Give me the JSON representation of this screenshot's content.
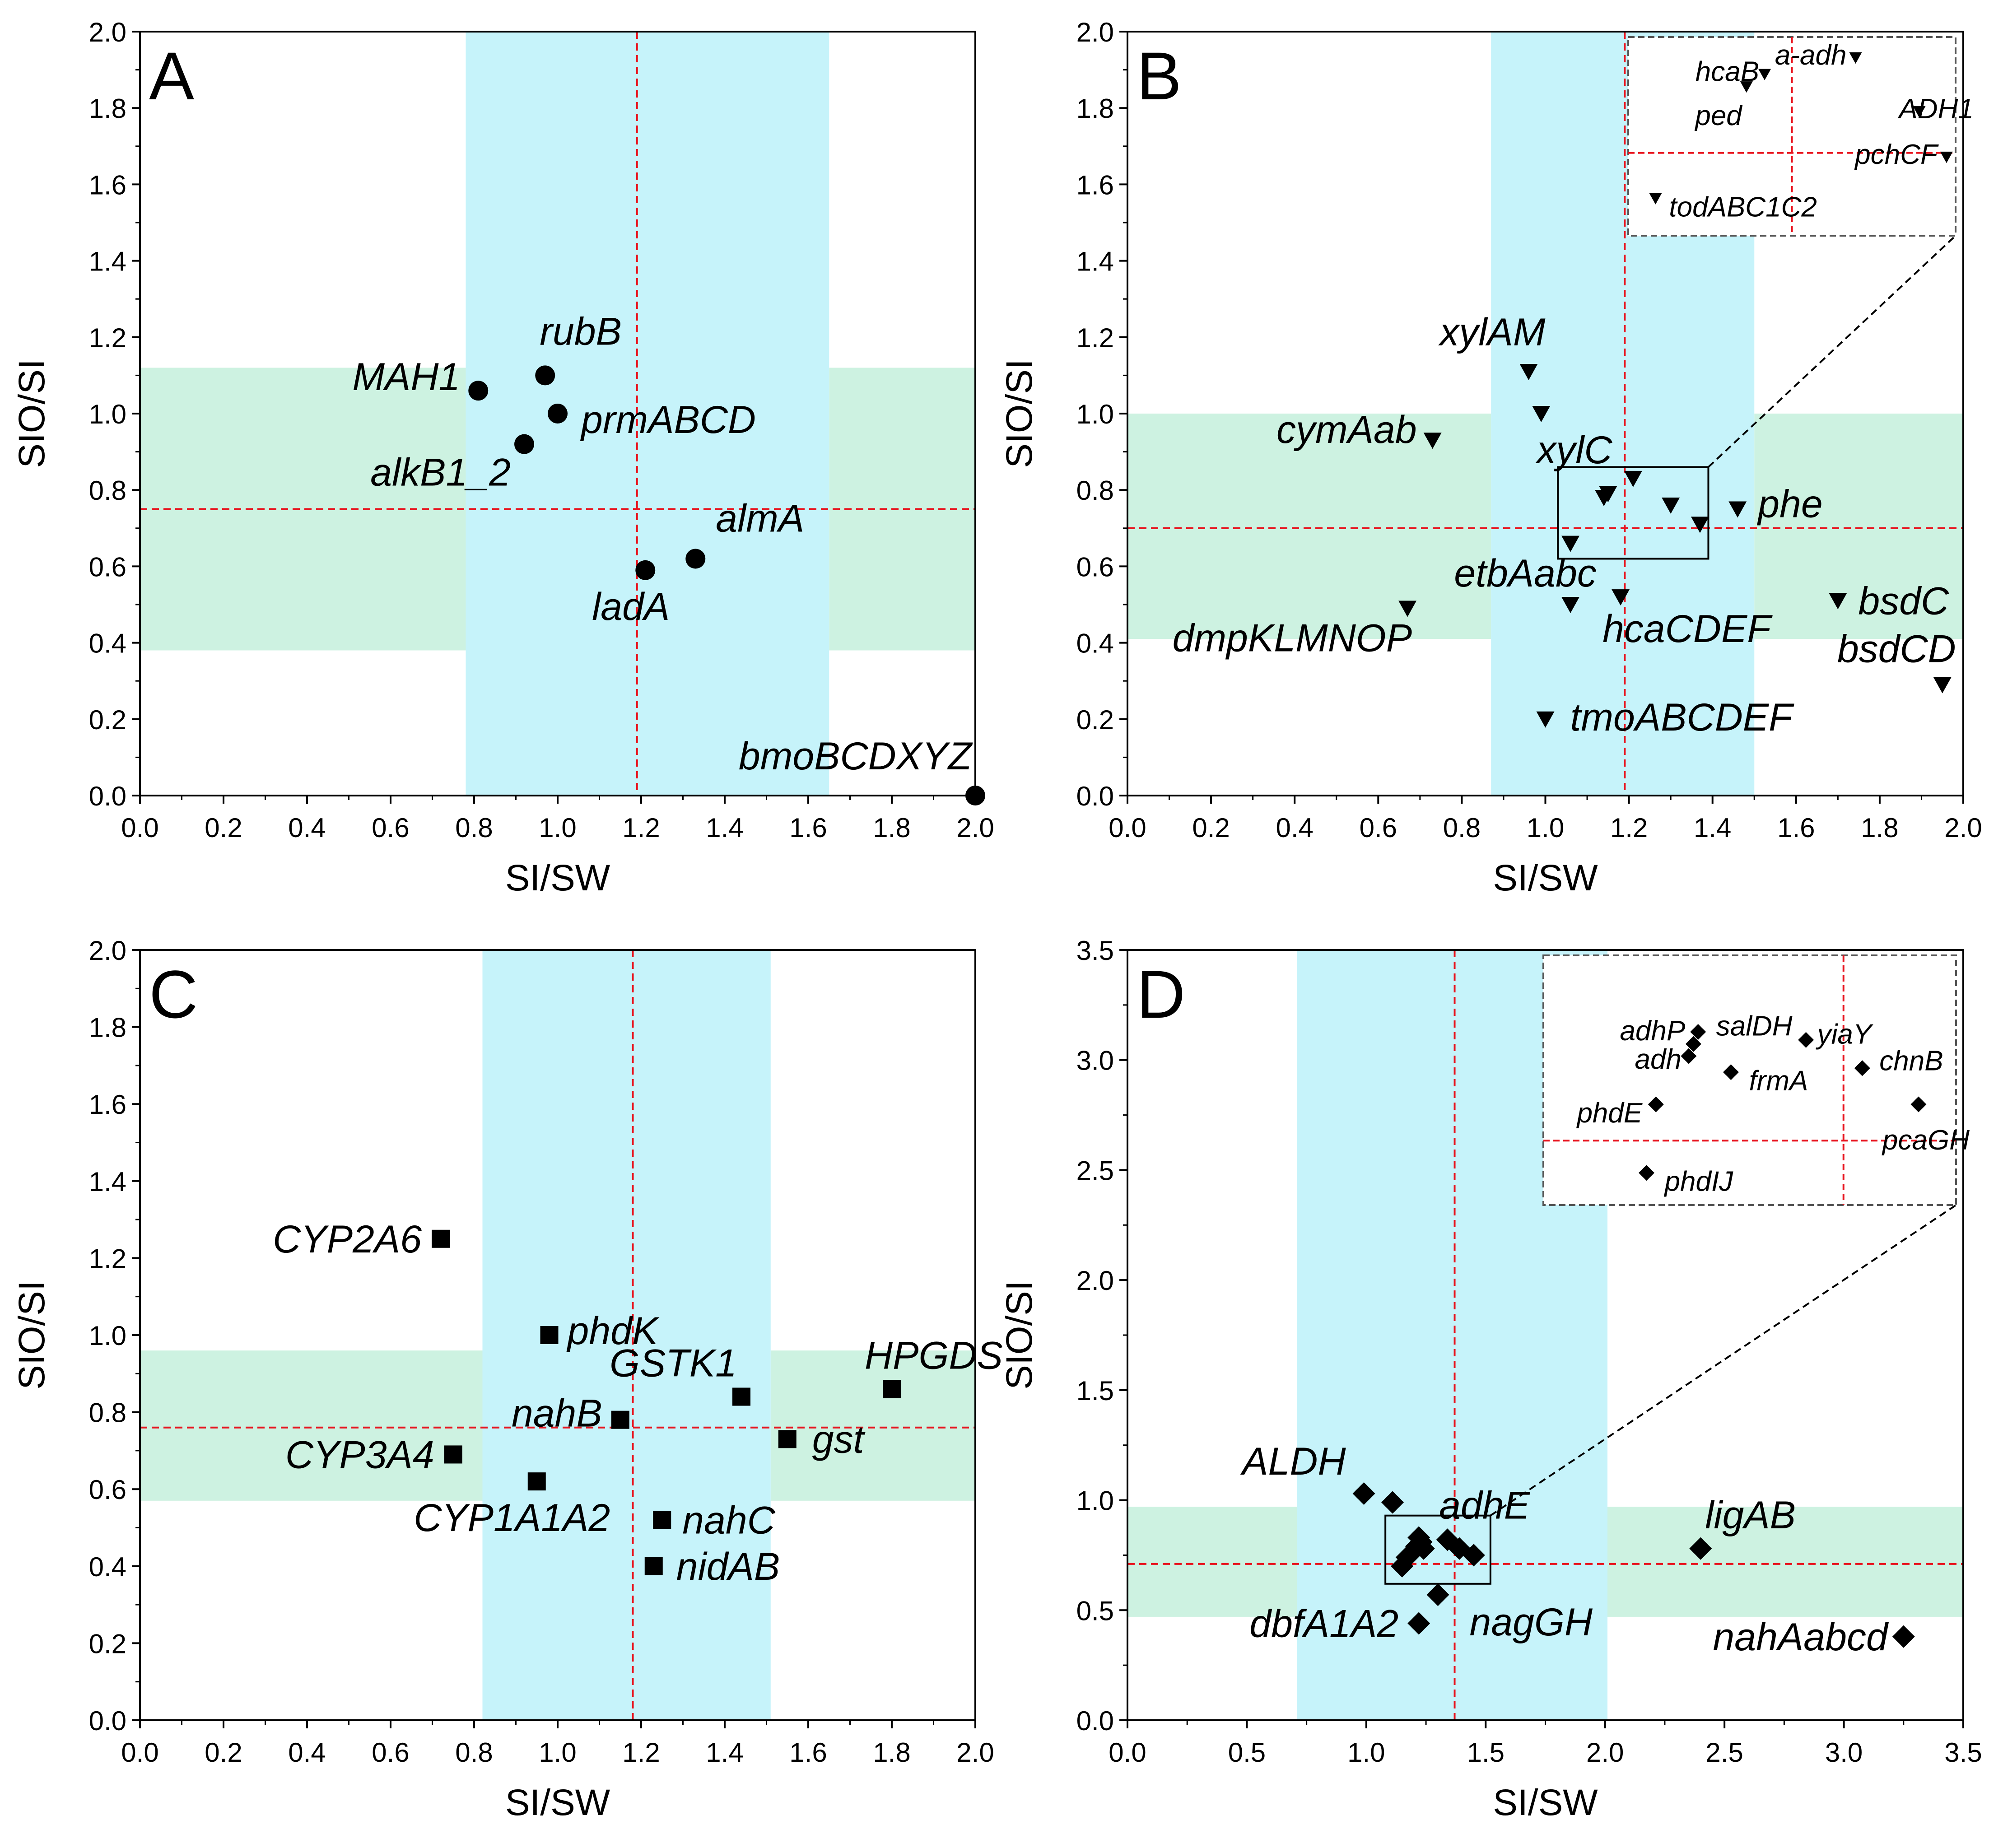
{
  "colors": {
    "cyan_band": "#c6f3fa",
    "green_band": "#cdf2e1",
    "threshold_line": "#e8141e",
    "axis": "#000000",
    "marker": "#000000",
    "inset_border": "#555555"
  },
  "chart_data": [
    {
      "panel": "A",
      "type": "scatter",
      "marker": "circle",
      "xlabel": "SI/SW",
      "ylabel": "SIO/SI",
      "xlim": [
        0,
        2.0
      ],
      "ylim": [
        0,
        2.0
      ],
      "xticks": [
        "0.0",
        "0.2",
        "0.4",
        "0.6",
        "0.8",
        "1.0",
        "1.2",
        "1.4",
        "1.6",
        "1.8",
        "2.0"
      ],
      "yticks": [
        "0.0",
        "0.2",
        "0.4",
        "0.6",
        "0.8",
        "1.0",
        "1.2",
        "1.4",
        "1.6",
        "1.8",
        "2.0"
      ],
      "x_threshold": 1.19,
      "y_threshold": 0.75,
      "x_band": [
        0.78,
        1.65
      ],
      "y_band": [
        0.38,
        1.12
      ],
      "points": [
        {
          "label": "MAH1",
          "x": 0.81,
          "y": 1.06
        },
        {
          "label": "rubB",
          "x": 0.97,
          "y": 1.1
        },
        {
          "label": "prmABCD",
          "x": 1.0,
          "y": 1.0
        },
        {
          "label": "alkB1_2",
          "x": 0.92,
          "y": 0.92
        },
        {
          "label": "almA",
          "x": 1.33,
          "y": 0.62
        },
        {
          "label": "ladA",
          "x": 1.21,
          "y": 0.59
        },
        {
          "label": "bmoBCDXYZ",
          "x": 2.0,
          "y": 0.0
        }
      ]
    },
    {
      "panel": "B",
      "type": "scatter",
      "marker": "triangle-down",
      "xlabel": "SI/SW",
      "ylabel": "SIO/SI",
      "xlim": [
        0,
        2.0
      ],
      "ylim": [
        0,
        2.0
      ],
      "xticks": [
        "0.0",
        "0.2",
        "0.4",
        "0.6",
        "0.8",
        "1.0",
        "1.2",
        "1.4",
        "1.6",
        "1.8",
        "2.0"
      ],
      "yticks": [
        "0.0",
        "0.2",
        "0.4",
        "0.6",
        "0.8",
        "1.0",
        "1.2",
        "1.4",
        "1.6",
        "1.8",
        "2.0"
      ],
      "x_threshold": 1.19,
      "y_threshold": 0.7,
      "x_band": [
        0.87,
        1.5
      ],
      "y_band": [
        0.41,
        1.0
      ],
      "points": [
        {
          "label": "xylAM",
          "x": 0.96,
          "y": 1.11
        },
        {
          "label": "xylC",
          "x": 0.99,
          "y": 1.0
        },
        {
          "label": "cymAab",
          "x": 0.73,
          "y": 0.93
        },
        {
          "label": "phe",
          "x": 1.46,
          "y": 0.75
        },
        {
          "label": "etbAabc",
          "x": 1.06,
          "y": 0.5
        },
        {
          "label": "hcaCDEF",
          "x": 1.18,
          "y": 0.52
        },
        {
          "label": "dmpKLMNOP",
          "x": 0.67,
          "y": 0.49
        },
        {
          "label": "bsdC",
          "x": 1.7,
          "y": 0.51
        },
        {
          "label": "bsdCD",
          "x": 1.95,
          "y": 0.29
        },
        {
          "label": "tmoABCDEF",
          "x": 1.0,
          "y": 0.2
        },
        {
          "x": 1.14,
          "y": 0.78
        },
        {
          "x": 1.15,
          "y": 0.79
        },
        {
          "x": 1.21,
          "y": 0.83
        },
        {
          "x": 1.3,
          "y": 0.76
        },
        {
          "x": 1.37,
          "y": 0.71
        },
        {
          "x": 1.06,
          "y": 0.66
        }
      ],
      "zoom_box": {
        "x": [
          1.03,
          1.39
        ],
        "y": [
          0.62,
          0.86
        ]
      },
      "inset": {
        "h_line_y": 0.72,
        "v_line_x": 1.21,
        "points": [
          {
            "label": "a-adh",
            "x": 1.28,
            "y": 0.835
          },
          {
            "label": "hcaB",
            "x": 1.18,
            "y": 0.815
          },
          {
            "label": "ped",
            "x": 1.16,
            "y": 0.8
          },
          {
            "label": "ADH1",
            "x": 1.35,
            "y": 0.77
          },
          {
            "label": "pchCF",
            "x": 1.38,
            "y": 0.715
          },
          {
            "label": "todABC1C2",
            "x": 1.06,
            "y": 0.665
          }
        ]
      }
    },
    {
      "panel": "C",
      "type": "scatter",
      "marker": "square",
      "xlabel": "SI/SW",
      "ylabel": "SIO/SI",
      "xlim": [
        0,
        2.0
      ],
      "ylim": [
        0,
        2.0
      ],
      "xticks": [
        "0.0",
        "0.2",
        "0.4",
        "0.6",
        "0.8",
        "1.0",
        "1.2",
        "1.4",
        "1.6",
        "1.8",
        "2.0"
      ],
      "yticks": [
        "0.0",
        "0.2",
        "0.4",
        "0.6",
        "0.8",
        "1.0",
        "1.2",
        "1.4",
        "1.6",
        "1.8",
        "2.0"
      ],
      "x_threshold": 1.18,
      "y_threshold": 0.76,
      "x_band": [
        0.82,
        1.51
      ],
      "y_band": [
        0.57,
        0.96
      ],
      "points": [
        {
          "label": "CYP2A6",
          "x": 0.72,
          "y": 1.25
        },
        {
          "label": "phdK",
          "x": 0.98,
          "y": 1.0
        },
        {
          "label": "GSTK1",
          "x": 1.44,
          "y": 0.84
        },
        {
          "label": "HPGDS",
          "x": 1.8,
          "y": 0.86
        },
        {
          "label": "nahB",
          "x": 1.15,
          "y": 0.78
        },
        {
          "label": "gst",
          "x": 1.55,
          "y": 0.73
        },
        {
          "label": "CYP3A4",
          "x": 0.75,
          "y": 0.69
        },
        {
          "label": "CYP1A1A2",
          "x": 0.95,
          "y": 0.62
        },
        {
          "label": "nahC",
          "x": 1.25,
          "y": 0.52
        },
        {
          "label": "nidAB",
          "x": 1.23,
          "y": 0.4
        }
      ]
    },
    {
      "panel": "D",
      "type": "scatter",
      "marker": "diamond",
      "xlabel": "SI/SW",
      "ylabel": "SIO/SI",
      "xlim": [
        0,
        3.5
      ],
      "ylim": [
        0,
        3.5
      ],
      "xticks": [
        "0.0",
        "0.5",
        "1.0",
        "1.5",
        "2.0",
        "2.5",
        "3.0",
        "3.5"
      ],
      "yticks": [
        "0.0",
        "0.5",
        "1.0",
        "1.5",
        "2.0",
        "2.5",
        "3.0",
        "3.5"
      ],
      "x_threshold": 1.37,
      "y_threshold": 0.71,
      "x_band": [
        0.71,
        2.01
      ],
      "y_band": [
        0.47,
        0.97
      ],
      "points": [
        {
          "label": "ALDH",
          "x": 0.99,
          "y": 1.03
        },
        {
          "x": 1.11,
          "y": 0.99
        },
        {
          "label": "adhE",
          "x": 1.22,
          "y": 0.83
        },
        {
          "label": "ligAB",
          "x": 2.4,
          "y": 0.78
        },
        {
          "label": "nagGH",
          "x": 1.3,
          "y": 0.57
        },
        {
          "label": "dbfA1A2",
          "x": 1.22,
          "y": 0.44
        },
        {
          "label": "nahAabcd",
          "x": 3.25,
          "y": 0.38
        },
        {
          "x": 1.15,
          "y": 0.7
        },
        {
          "x": 1.17,
          "y": 0.74
        },
        {
          "x": 1.19,
          "y": 0.76
        },
        {
          "x": 1.21,
          "y": 0.79
        },
        {
          "x": 1.23,
          "y": 0.81
        },
        {
          "x": 1.24,
          "y": 0.78
        },
        {
          "x": 1.34,
          "y": 0.82
        },
        {
          "x": 1.39,
          "y": 0.78
        },
        {
          "x": 1.45,
          "y": 0.75
        }
      ],
      "zoom_box": {
        "x": [
          1.08,
          1.52
        ],
        "y": [
          0.62,
          0.93
        ]
      },
      "inset": {
        "h_line_y": 0.7,
        "v_line_x": 1.4,
        "points": [
          {
            "label": "adhP",
            "x": 1.24,
            "y": 0.82
          },
          {
            "label": "salDH",
            "x": 1.245,
            "y": 0.835
          },
          {
            "label": "adh",
            "x": 1.235,
            "y": 0.805
          },
          {
            "label": "yiaY",
            "x": 1.36,
            "y": 0.825
          },
          {
            "label": "frmA",
            "x": 1.28,
            "y": 0.785
          },
          {
            "label": "chnB",
            "x": 1.42,
            "y": 0.79
          },
          {
            "label": "phdE",
            "x": 1.2,
            "y": 0.745
          },
          {
            "label": "pcaGH",
            "x": 1.48,
            "y": 0.745
          },
          {
            "label": "phdIJ",
            "x": 1.19,
            "y": 0.66
          }
        ]
      }
    }
  ]
}
